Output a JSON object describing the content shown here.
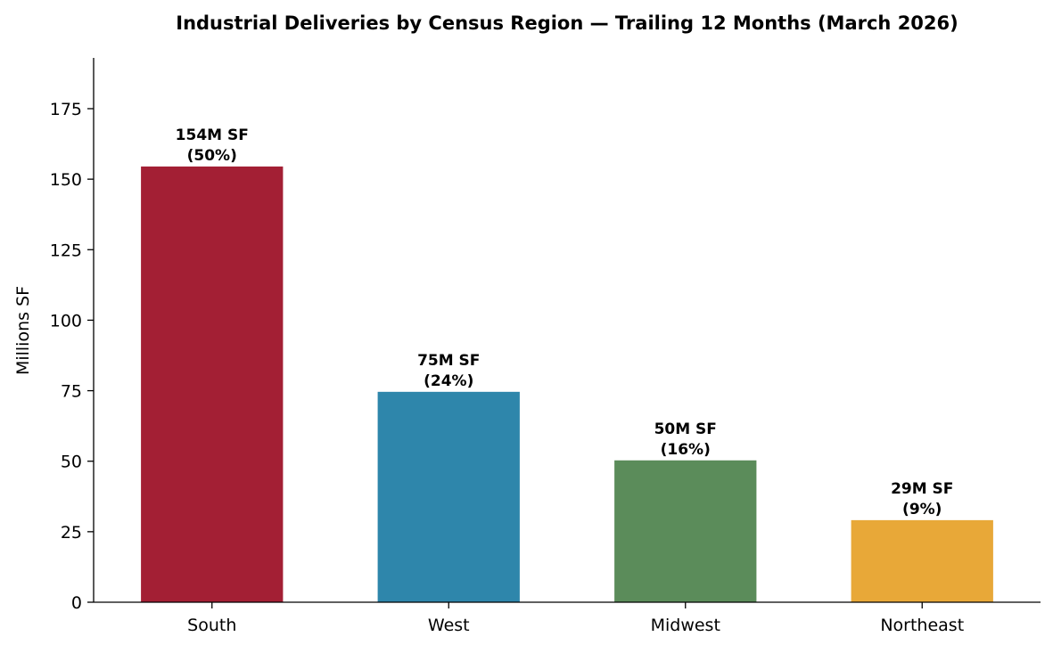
{
  "chart_data": {
    "type": "bar",
    "title": "Industrial Deliveries by Census Region — Trailing 12 Months (March 2026)",
    "xlabel": "",
    "ylabel": "Millions SF",
    "categories": [
      "South",
      "West",
      "Midwest",
      "Northeast"
    ],
    "values": [
      154.5,
      74.6,
      50.3,
      29.1
    ],
    "data_labels": [
      [
        "154M SF",
        "(50%)"
      ],
      [
        "75M SF",
        "(24%)"
      ],
      [
        "50M SF",
        "(16%)"
      ],
      [
        "29M SF",
        "(9%)"
      ]
    ],
    "colors": [
      "#A31F34",
      "#2E86AB",
      "#5B8C5A",
      "#E8A838"
    ],
    "ylim": [
      0,
      193
    ],
    "yticks": [
      0,
      25,
      50,
      75,
      100,
      125,
      150,
      175
    ],
    "grid": false,
    "legend": "none"
  }
}
